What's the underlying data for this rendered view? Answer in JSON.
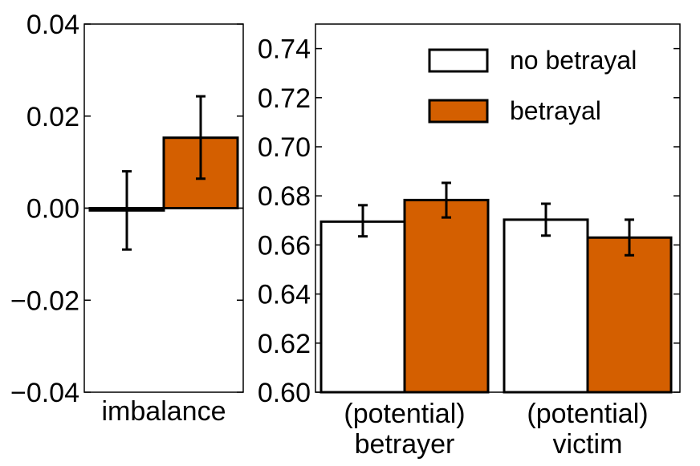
{
  "chart_data": [
    {
      "type": "bar",
      "name": "left-panel",
      "categories": [
        "imbalance"
      ],
      "series": [
        {
          "name": "no betrayal",
          "color": "#ffffff",
          "values": [
            -0.0005
          ],
          "err_low": [
            -0.009
          ],
          "err_high": [
            0.008
          ]
        },
        {
          "name": "betrayal",
          "color": "#d45f00",
          "values": [
            0.0153
          ],
          "err_low": [
            0.0064
          ],
          "err_high": [
            0.0243
          ]
        }
      ],
      "ylim": [
        -0.04,
        0.04
      ],
      "yticks": [
        -0.04,
        -0.02,
        0.0,
        0.02,
        0.04
      ],
      "ytick_labels": [
        "−0.04",
        "−0.02",
        "0.00",
        "0.02",
        "0.04"
      ],
      "zero_line": true,
      "category_labels": [
        "imbalance"
      ]
    },
    {
      "type": "bar",
      "name": "right-panel",
      "categories": [
        "(potential) betrayer",
        "(potential) victim"
      ],
      "category_lines": [
        [
          "(potential)",
          "betrayer"
        ],
        [
          "(potential)",
          "victim"
        ]
      ],
      "series": [
        {
          "name": "no betrayal",
          "color": "#ffffff",
          "values": [
            0.6695,
            0.6703
          ],
          "err_low": [
            0.6635,
            0.6638
          ],
          "err_high": [
            0.6762,
            0.6768
          ]
        },
        {
          "name": "betrayal",
          "color": "#d45f00",
          "values": [
            0.6783,
            0.663
          ],
          "err_low": [
            0.6712,
            0.6558
          ],
          "err_high": [
            0.6853,
            0.6703
          ]
        }
      ],
      "ylim": [
        0.6,
        0.75
      ],
      "yticks": [
        0.6,
        0.62,
        0.64,
        0.66,
        0.68,
        0.7,
        0.72,
        0.74
      ],
      "ytick_labels": [
        "0.60",
        "0.62",
        "0.64",
        "0.66",
        "0.68",
        "0.70",
        "0.72",
        "0.74"
      ],
      "legend": {
        "position": "top-right",
        "entries": [
          "no betrayal",
          "betrayal"
        ]
      }
    }
  ]
}
